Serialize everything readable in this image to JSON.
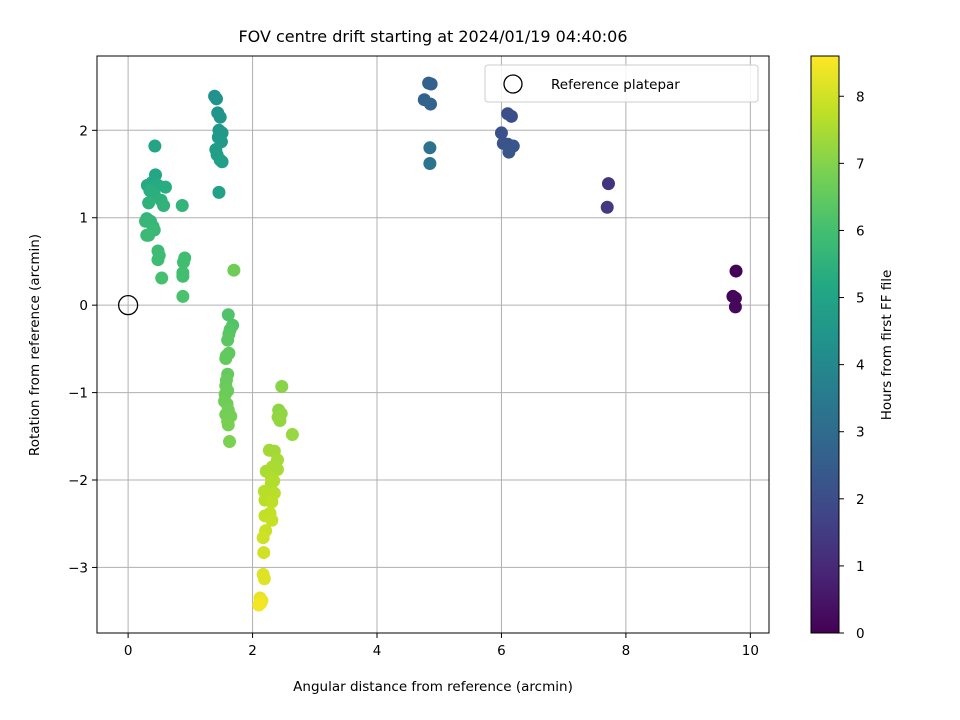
{
  "chart_data": {
    "type": "scatter",
    "title": "FOV centre drift starting at 2024/01/19 04:40:06",
    "xlabel": "Angular distance from reference (arcmin)",
    "ylabel": "Rotation from reference (arcmin)",
    "xlim": [
      -0.5,
      10.3
    ],
    "ylim": [
      -3.75,
      2.85
    ],
    "xticks": [
      0,
      2,
      4,
      6,
      8,
      10
    ],
    "yticks": [
      -3,
      -2,
      -1,
      0,
      1,
      2
    ],
    "grid": true,
    "legend": {
      "placement": "top-right",
      "entries": [
        "Reference platepar"
      ]
    },
    "colorbar": {
      "label": "Hours from first FF file",
      "range": [
        0,
        8.6
      ],
      "ticks": [
        0,
        1,
        2,
        3,
        4,
        5,
        6,
        7,
        8
      ],
      "colormap": "viridis"
    },
    "reference": {
      "x": 0,
      "y": 0
    },
    "points": [
      {
        "x": 9.77,
        "y": 0.39,
        "h": 0.05
      },
      {
        "x": 9.72,
        "y": 0.1,
        "h": 0.1
      },
      {
        "x": 9.76,
        "y": 0.08,
        "h": 0.15
      },
      {
        "x": 9.76,
        "y": -0.02,
        "h": 0.2
      },
      {
        "x": 7.72,
        "y": 1.39,
        "h": 1.3
      },
      {
        "x": 7.7,
        "y": 1.12,
        "h": 1.4
      },
      {
        "x": 6.1,
        "y": 2.19,
        "h": 2.0
      },
      {
        "x": 6.16,
        "y": 2.16,
        "h": 2.05
      },
      {
        "x": 6.0,
        "y": 1.97,
        "h": 2.1
      },
      {
        "x": 6.03,
        "y": 1.85,
        "h": 2.15
      },
      {
        "x": 6.1,
        "y": 1.84,
        "h": 2.2
      },
      {
        "x": 6.19,
        "y": 1.82,
        "h": 2.25
      },
      {
        "x": 6.12,
        "y": 1.75,
        "h": 2.3
      },
      {
        "x": 4.83,
        "y": 2.54,
        "h": 2.6
      },
      {
        "x": 4.87,
        "y": 2.53,
        "h": 2.65
      },
      {
        "x": 4.76,
        "y": 2.35,
        "h": 2.7
      },
      {
        "x": 4.86,
        "y": 2.3,
        "h": 2.75
      },
      {
        "x": 4.85,
        "y": 1.8,
        "h": 3.2
      },
      {
        "x": 4.85,
        "y": 1.62,
        "h": 3.3
      },
      {
        "x": 1.39,
        "y": 2.39,
        "h": 4.3
      },
      {
        "x": 1.42,
        "y": 2.36,
        "h": 4.35
      },
      {
        "x": 1.44,
        "y": 2.2,
        "h": 4.4
      },
      {
        "x": 1.48,
        "y": 2.15,
        "h": 4.45
      },
      {
        "x": 1.46,
        "y": 2.0,
        "h": 4.5
      },
      {
        "x": 1.51,
        "y": 1.97,
        "h": 4.55
      },
      {
        "x": 1.45,
        "y": 1.92,
        "h": 4.6
      },
      {
        "x": 1.5,
        "y": 1.87,
        "h": 4.65
      },
      {
        "x": 1.41,
        "y": 1.78,
        "h": 4.7
      },
      {
        "x": 1.43,
        "y": 1.72,
        "h": 4.75
      },
      {
        "x": 1.48,
        "y": 1.66,
        "h": 4.8
      },
      {
        "x": 1.51,
        "y": 1.64,
        "h": 4.85
      },
      {
        "x": 1.46,
        "y": 1.29,
        "h": 4.9
      },
      {
        "x": 0.43,
        "y": 1.82,
        "h": 5.0
      },
      {
        "x": 0.44,
        "y": 1.49,
        "h": 5.1
      },
      {
        "x": 0.38,
        "y": 1.4,
        "h": 5.15
      },
      {
        "x": 0.31,
        "y": 1.37,
        "h": 5.2
      },
      {
        "x": 0.48,
        "y": 1.37,
        "h": 5.25
      },
      {
        "x": 0.6,
        "y": 1.35,
        "h": 5.3
      },
      {
        "x": 0.35,
        "y": 1.31,
        "h": 5.35
      },
      {
        "x": 0.42,
        "y": 1.27,
        "h": 5.4
      },
      {
        "x": 0.53,
        "y": 1.2,
        "h": 5.45
      },
      {
        "x": 0.33,
        "y": 1.17,
        "h": 5.5
      },
      {
        "x": 0.57,
        "y": 1.14,
        "h": 5.55
      },
      {
        "x": 0.87,
        "y": 1.14,
        "h": 5.6
      },
      {
        "x": 0.3,
        "y": 0.99,
        "h": 5.6
      },
      {
        "x": 0.36,
        "y": 0.96,
        "h": 5.65
      },
      {
        "x": 0.28,
        "y": 0.96,
        "h": 5.7
      },
      {
        "x": 0.4,
        "y": 0.9,
        "h": 5.7
      },
      {
        "x": 0.42,
        "y": 0.86,
        "h": 5.75
      },
      {
        "x": 0.33,
        "y": 0.8,
        "h": 5.8
      },
      {
        "x": 0.3,
        "y": 0.8,
        "h": 5.8
      },
      {
        "x": 0.48,
        "y": 0.62,
        "h": 5.85
      },
      {
        "x": 0.5,
        "y": 0.57,
        "h": 5.9
      },
      {
        "x": 0.48,
        "y": 0.52,
        "h": 5.9
      },
      {
        "x": 0.91,
        "y": 0.54,
        "h": 5.95
      },
      {
        "x": 0.89,
        "y": 0.49,
        "h": 5.95
      },
      {
        "x": 0.88,
        "y": 0.37,
        "h": 6.0
      },
      {
        "x": 0.88,
        "y": 0.33,
        "h": 6.0
      },
      {
        "x": 0.54,
        "y": 0.31,
        "h": 6.05
      },
      {
        "x": 0.88,
        "y": 0.1,
        "h": 6.1
      },
      {
        "x": 1.7,
        "y": 0.4,
        "h": 6.7
      },
      {
        "x": 1.61,
        "y": -0.11,
        "h": 6.2
      },
      {
        "x": 1.68,
        "y": -0.23,
        "h": 6.25
      },
      {
        "x": 1.64,
        "y": -0.28,
        "h": 6.3
      },
      {
        "x": 1.62,
        "y": -0.33,
        "h": 6.35
      },
      {
        "x": 1.6,
        "y": -0.4,
        "h": 6.4
      },
      {
        "x": 1.62,
        "y": -0.55,
        "h": 6.45
      },
      {
        "x": 1.58,
        "y": -0.58,
        "h": 6.5
      },
      {
        "x": 1.57,
        "y": -0.61,
        "h": 6.5
      },
      {
        "x": 1.6,
        "y": -0.79,
        "h": 6.55
      },
      {
        "x": 1.58,
        "y": -0.86,
        "h": 6.6
      },
      {
        "x": 1.57,
        "y": -0.92,
        "h": 6.6
      },
      {
        "x": 1.6,
        "y": -0.98,
        "h": 6.65
      },
      {
        "x": 1.56,
        "y": -1.02,
        "h": 6.65
      },
      {
        "x": 1.55,
        "y": -1.1,
        "h": 6.7
      },
      {
        "x": 1.59,
        "y": -1.13,
        "h": 6.7
      },
      {
        "x": 1.61,
        "y": -1.2,
        "h": 6.75
      },
      {
        "x": 1.57,
        "y": -1.25,
        "h": 6.75
      },
      {
        "x": 1.65,
        "y": -1.27,
        "h": 6.8
      },
      {
        "x": 1.6,
        "y": -1.33,
        "h": 6.8
      },
      {
        "x": 1.61,
        "y": -1.37,
        "h": 6.85
      },
      {
        "x": 1.63,
        "y": -1.56,
        "h": 6.9
      },
      {
        "x": 2.47,
        "y": -0.93,
        "h": 7.05
      },
      {
        "x": 2.42,
        "y": -1.2,
        "h": 7.1
      },
      {
        "x": 2.46,
        "y": -1.24,
        "h": 7.15
      },
      {
        "x": 2.41,
        "y": -1.28,
        "h": 7.2
      },
      {
        "x": 2.44,
        "y": -1.32,
        "h": 7.2
      },
      {
        "x": 2.64,
        "y": -1.48,
        "h": 7.25
      },
      {
        "x": 2.27,
        "y": -1.66,
        "h": 7.4
      },
      {
        "x": 2.35,
        "y": -1.67,
        "h": 7.4
      },
      {
        "x": 2.4,
        "y": -1.77,
        "h": 7.45
      },
      {
        "x": 2.32,
        "y": -1.85,
        "h": 7.5
      },
      {
        "x": 2.22,
        "y": -1.9,
        "h": 7.5
      },
      {
        "x": 2.4,
        "y": -1.88,
        "h": 7.5
      },
      {
        "x": 2.3,
        "y": -1.96,
        "h": 7.55
      },
      {
        "x": 2.34,
        "y": -2.01,
        "h": 7.6
      },
      {
        "x": 2.3,
        "y": -2.04,
        "h": 7.6
      },
      {
        "x": 2.19,
        "y": -2.13,
        "h": 7.65
      },
      {
        "x": 2.35,
        "y": -2.15,
        "h": 7.65
      },
      {
        "x": 2.27,
        "y": -2.18,
        "h": 7.7
      },
      {
        "x": 2.2,
        "y": -2.23,
        "h": 7.7
      },
      {
        "x": 2.31,
        "y": -2.25,
        "h": 7.75
      },
      {
        "x": 2.28,
        "y": -2.38,
        "h": 7.8
      },
      {
        "x": 2.2,
        "y": -2.41,
        "h": 7.8
      },
      {
        "x": 2.31,
        "y": -2.46,
        "h": 7.85
      },
      {
        "x": 2.21,
        "y": -2.58,
        "h": 7.9
      },
      {
        "x": 2.17,
        "y": -2.66,
        "h": 7.95
      },
      {
        "x": 2.18,
        "y": -2.83,
        "h": 8.0
      },
      {
        "x": 2.17,
        "y": -3.08,
        "h": 8.15
      },
      {
        "x": 2.19,
        "y": -3.13,
        "h": 8.2
      },
      {
        "x": 2.12,
        "y": -3.35,
        "h": 8.3
      },
      {
        "x": 2.15,
        "y": -3.38,
        "h": 8.35
      },
      {
        "x": 2.13,
        "y": -3.41,
        "h": 8.4
      },
      {
        "x": 2.1,
        "y": -3.43,
        "h": 8.45
      }
    ]
  }
}
